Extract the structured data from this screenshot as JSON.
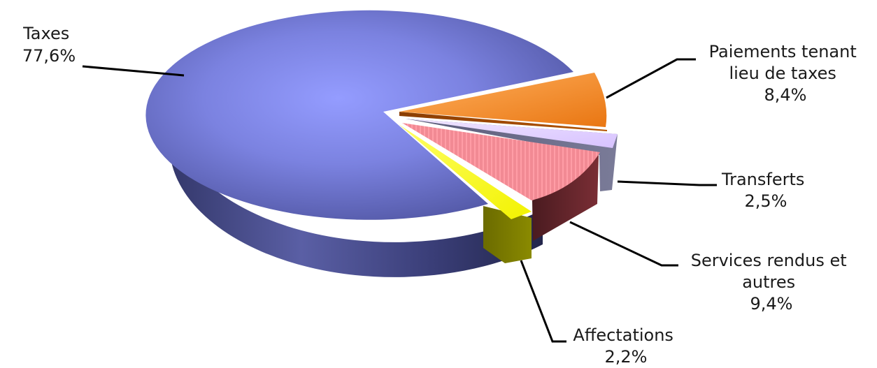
{
  "chart_data": {
    "type": "pie",
    "title": "",
    "legend": "none",
    "slices": [
      {
        "label_lines": [
          "Taxes"
        ],
        "value_label": "77,6%",
        "value": 77.6,
        "color": "#7f86e6"
      },
      {
        "label_lines": [
          "Paiements tenant",
          "lieu de taxes"
        ],
        "value_label": "8,4%",
        "value": 8.4,
        "color": "#f08a24"
      },
      {
        "label_lines": [
          "Transferts"
        ],
        "value_label": "2,5%",
        "value": 2.5,
        "color": "#d9c6ff"
      },
      {
        "label_lines": [
          "Services rendus et",
          "autres"
        ],
        "value_label": "9,4%",
        "value": 9.4,
        "color": "#f28a94"
      },
      {
        "label_lines": [
          "Affectations"
        ],
        "value_label": "2,2%",
        "value": 2.2,
        "color": "#ffff00"
      }
    ]
  }
}
